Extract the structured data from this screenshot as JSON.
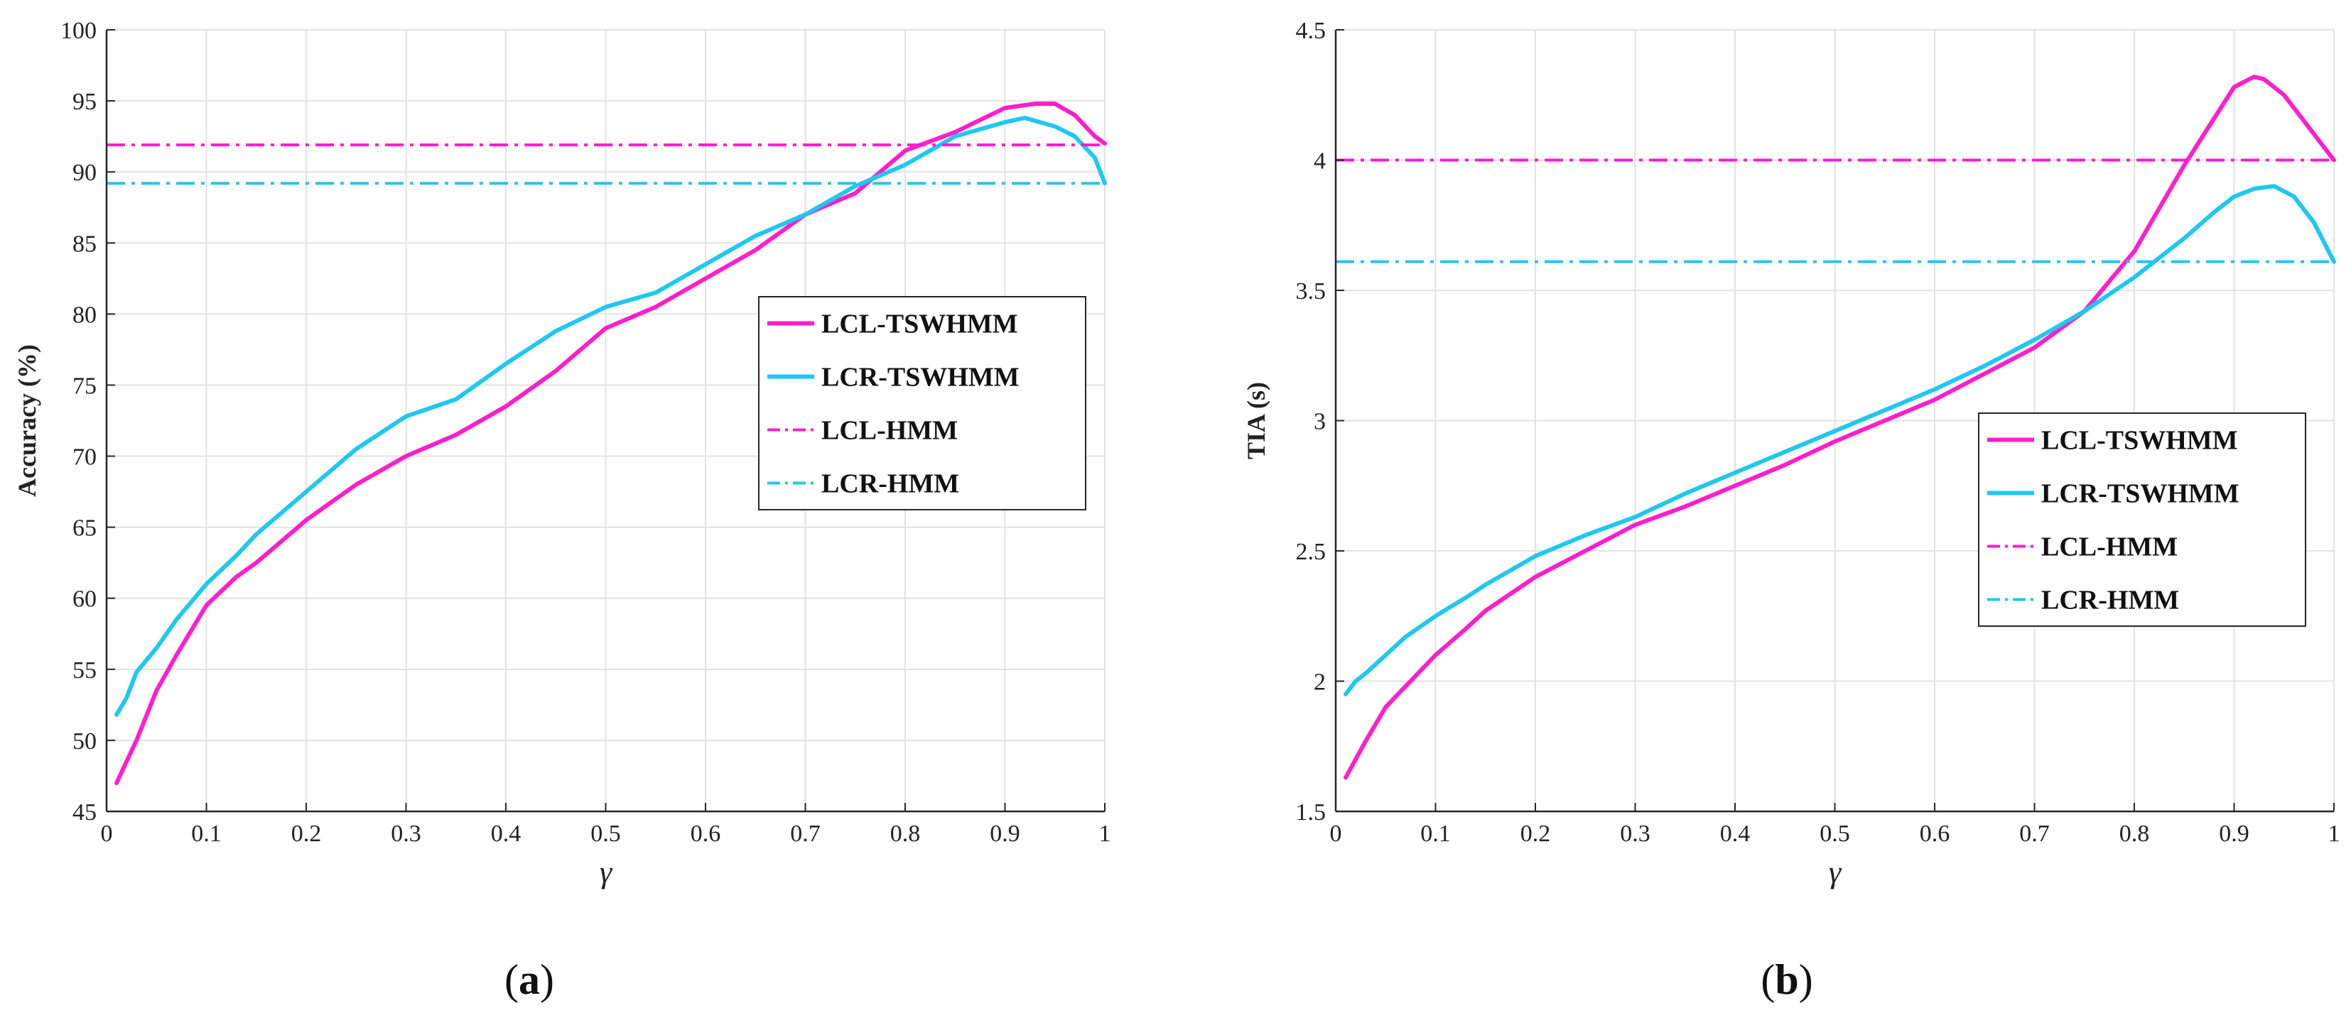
{
  "chart_data": [
    {
      "type": "line",
      "panel_caption": "a",
      "xlabel": "γ",
      "ylabel": "Accuracy (%)",
      "xlim": [
        0,
        1
      ],
      "ylim": [
        45,
        100
      ],
      "x_ticks": [
        0,
        0.1,
        0.2,
        0.3,
        0.4,
        0.5,
        0.6,
        0.7,
        0.8,
        0.9,
        1
      ],
      "x_tick_labels": [
        "0",
        "0.1",
        "0.2",
        "0.3",
        "0.4",
        "0.5",
        "0.6",
        "0.7",
        "0.8",
        "0.9",
        "1"
      ],
      "y_ticks": [
        45,
        50,
        55,
        60,
        65,
        70,
        75,
        80,
        85,
        90,
        95,
        100
      ],
      "y_tick_labels": [
        "45",
        "50",
        "55",
        "60",
        "65",
        "70",
        "75",
        "80",
        "85",
        "90",
        "95",
        "100"
      ],
      "grid": true,
      "legend_position": "middle-right",
      "series": [
        {
          "name": "LCL-TSWHMM",
          "color": "#ff1ecc",
          "style": "solid",
          "x": [
            0.01,
            0.02,
            0.03,
            0.05,
            0.07,
            0.1,
            0.13,
            0.15,
            0.2,
            0.25,
            0.3,
            0.35,
            0.4,
            0.45,
            0.5,
            0.55,
            0.6,
            0.65,
            0.7,
            0.75,
            0.8,
            0.85,
            0.9,
            0.93,
            0.95,
            0.97,
            0.99,
            1.0
          ],
          "values": [
            47,
            48.5,
            50,
            53.5,
            56,
            59.5,
            61.5,
            62.5,
            65.5,
            68,
            70,
            71.5,
            73.5,
            76,
            79,
            80.5,
            82.5,
            84.5,
            87,
            88.5,
            91.5,
            92.8,
            94.5,
            94.8,
            94.8,
            94,
            92.5,
            92
          ]
        },
        {
          "name": "LCR-TSWHMM",
          "color": "#1fc8f0",
          "style": "solid",
          "x": [
            0.01,
            0.02,
            0.03,
            0.05,
            0.07,
            0.1,
            0.13,
            0.15,
            0.2,
            0.25,
            0.3,
            0.35,
            0.4,
            0.45,
            0.5,
            0.55,
            0.6,
            0.65,
            0.7,
            0.75,
            0.8,
            0.85,
            0.9,
            0.92,
            0.95,
            0.97,
            0.99,
            1.0
          ],
          "values": [
            51.8,
            53,
            54.8,
            56.5,
            58.5,
            61,
            63,
            64.5,
            67.5,
            70.5,
            72.8,
            74,
            76.5,
            78.8,
            80.5,
            81.5,
            83.5,
            85.5,
            87,
            89,
            90.5,
            92.5,
            93.5,
            93.8,
            93.2,
            92.5,
            91,
            89.2
          ]
        },
        {
          "name": "LCL-HMM",
          "color": "#ff1ecc",
          "style": "dashdot",
          "x": [
            0,
            1
          ],
          "values": [
            91.9,
            91.9
          ]
        },
        {
          "name": "LCR-HMM",
          "color": "#1fc8f0",
          "style": "dashdot",
          "x": [
            0,
            1
          ],
          "values": [
            89.2,
            89.2
          ]
        }
      ]
    },
    {
      "type": "line",
      "panel_caption": "b",
      "xlabel": "γ",
      "ylabel": "TIA (s)",
      "xlim": [
        0,
        1
      ],
      "ylim": [
        1.5,
        4.5
      ],
      "x_ticks": [
        0,
        0.1,
        0.2,
        0.3,
        0.4,
        0.5,
        0.6,
        0.7,
        0.8,
        0.9,
        1
      ],
      "x_tick_labels": [
        "0",
        "0.1",
        "0.2",
        "0.3",
        "0.4",
        "0.5",
        "0.6",
        "0.7",
        "0.8",
        "0.9",
        "1"
      ],
      "y_ticks": [
        1.5,
        2,
        2.5,
        3,
        3.5,
        4,
        4.5
      ],
      "y_tick_labels": [
        "1.5",
        "2",
        "2.5",
        "3",
        "3.5",
        "4",
        "4.5"
      ],
      "grid": true,
      "legend_position": "middle-right",
      "series": [
        {
          "name": "LCL-TSWHMM",
          "color": "#ff1ecc",
          "style": "solid",
          "x": [
            0.01,
            0.02,
            0.03,
            0.05,
            0.07,
            0.1,
            0.13,
            0.15,
            0.2,
            0.25,
            0.3,
            0.35,
            0.4,
            0.45,
            0.5,
            0.55,
            0.6,
            0.65,
            0.7,
            0.75,
            0.8,
            0.85,
            0.88,
            0.9,
            0.92,
            0.93,
            0.95,
            0.97,
            1.0
          ],
          "values": [
            1.63,
            1.7,
            1.77,
            1.9,
            1.98,
            2.1,
            2.2,
            2.27,
            2.4,
            2.5,
            2.6,
            2.67,
            2.75,
            2.83,
            2.92,
            3.0,
            3.08,
            3.18,
            3.28,
            3.42,
            3.65,
            3.98,
            4.16,
            4.28,
            4.32,
            4.31,
            4.25,
            4.15,
            4.0
          ]
        },
        {
          "name": "LCR-TSWHMM",
          "color": "#1fc8f0",
          "style": "solid",
          "x": [
            0.01,
            0.02,
            0.03,
            0.05,
            0.07,
            0.1,
            0.13,
            0.15,
            0.2,
            0.25,
            0.3,
            0.35,
            0.4,
            0.45,
            0.5,
            0.55,
            0.6,
            0.65,
            0.7,
            0.75,
            0.8,
            0.85,
            0.88,
            0.9,
            0.92,
            0.94,
            0.96,
            0.98,
            1.0
          ],
          "values": [
            1.95,
            2.0,
            2.03,
            2.1,
            2.17,
            2.25,
            2.32,
            2.37,
            2.48,
            2.56,
            2.63,
            2.72,
            2.8,
            2.88,
            2.96,
            3.04,
            3.12,
            3.21,
            3.31,
            3.42,
            3.55,
            3.7,
            3.8,
            3.86,
            3.89,
            3.9,
            3.86,
            3.76,
            3.61
          ]
        },
        {
          "name": "LCL-HMM",
          "color": "#ff1ecc",
          "style": "dashdot",
          "x": [
            0,
            1
          ],
          "values": [
            4.0,
            4.0
          ]
        },
        {
          "name": "LCR-HMM",
          "color": "#1fc8f0",
          "style": "dashdot",
          "x": [
            0,
            1
          ],
          "values": [
            3.61,
            3.61
          ]
        }
      ]
    }
  ]
}
